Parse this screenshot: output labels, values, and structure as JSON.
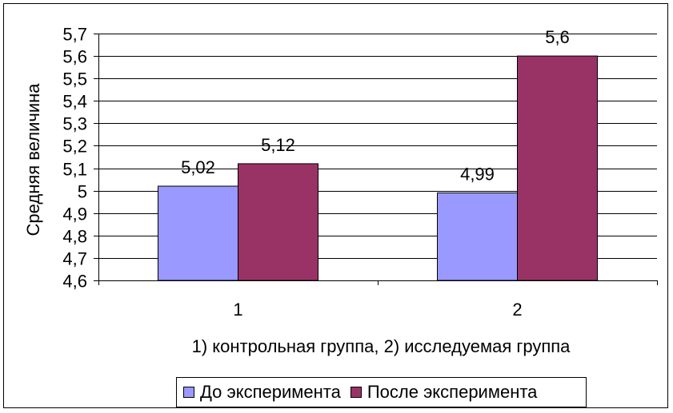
{
  "chart_data": {
    "type": "bar",
    "title": "",
    "xlabel": "1) контрольная группа, 2) исследуемая группа",
    "ylabel": "Средняя величина",
    "categories": [
      "1",
      "2"
    ],
    "series": [
      {
        "name": "До эксперимента",
        "values": [
          5.02,
          4.99
        ],
        "labels": [
          "5,02",
          "4,99"
        ],
        "color": "#9999ff"
      },
      {
        "name": "После эксперимента",
        "values": [
          5.12,
          5.6
        ],
        "labels": [
          "5,12",
          "5,6"
        ],
        "color": "#993366"
      }
    ],
    "ylim": [
      4.6,
      5.7
    ],
    "yticks": [
      4.6,
      4.7,
      4.8,
      4.9,
      5.0,
      5.1,
      5.2,
      5.3,
      5.4,
      5.5,
      5.6,
      5.7
    ],
    "ytick_labels": [
      "4,6",
      "4,7",
      "4,8",
      "4,9",
      "5",
      "5,1",
      "5,2",
      "5,3",
      "5,4",
      "5,5",
      "5,6",
      "5,7"
    ],
    "grid": true,
    "legend_position": "bottom"
  }
}
